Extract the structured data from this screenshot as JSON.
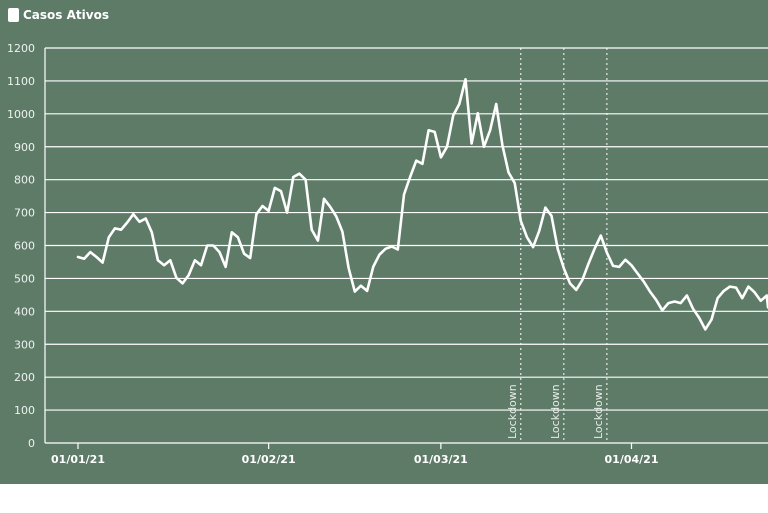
{
  "legend": {
    "label": "Casos Ativos",
    "color": "#ffffff"
  },
  "colors": {
    "background": "#5e7b68",
    "line": "#ffffff",
    "grid": "#ffffff"
  },
  "chart_data": {
    "type": "line",
    "title": "",
    "xlabel": "",
    "ylabel": "",
    "ylim": [
      0,
      1200
    ],
    "yticks": [
      0,
      100,
      200,
      300,
      400,
      500,
      600,
      700,
      800,
      900,
      1000,
      1100,
      1200
    ],
    "grid": true,
    "legend_position": "top-left",
    "xlim": [
      "2021-01-01",
      "2021-04-30"
    ],
    "xticks": [
      {
        "date": "2021-01-01",
        "label": "01/01/21"
      },
      {
        "date": "2021-02-01",
        "label": "01/02/21"
      },
      {
        "date": "2021-03-01",
        "label": "01/03/21"
      },
      {
        "date": "2021-04-01",
        "label": "01/04/21"
      }
    ],
    "annotations": [
      {
        "date": "2021-03-14",
        "label": "Lockdown"
      },
      {
        "date": "2021-03-21",
        "label": "Lockdown"
      },
      {
        "date": "2021-03-28",
        "label": "Lockdown"
      }
    ],
    "series": [
      {
        "name": "Casos Ativos",
        "points": [
          [
            "2021-01-01",
            565
          ],
          [
            "2021-01-02",
            560
          ],
          [
            "2021-01-03",
            580
          ],
          [
            "2021-01-04",
            565
          ],
          [
            "2021-01-05",
            548
          ],
          [
            "2021-01-06",
            625
          ],
          [
            "2021-01-07",
            652
          ],
          [
            "2021-01-08",
            648
          ],
          [
            "2021-01-09",
            670
          ],
          [
            "2021-01-10",
            695
          ],
          [
            "2021-01-11",
            672
          ],
          [
            "2021-01-12",
            682
          ],
          [
            "2021-01-13",
            640
          ],
          [
            "2021-01-14",
            555
          ],
          [
            "2021-01-15",
            540
          ],
          [
            "2021-01-16",
            555
          ],
          [
            "2021-01-17",
            502
          ],
          [
            "2021-01-18",
            485
          ],
          [
            "2021-01-19",
            510
          ],
          [
            "2021-01-20",
            555
          ],
          [
            "2021-01-21",
            540
          ],
          [
            "2021-01-22",
            600
          ],
          [
            "2021-01-23",
            600
          ],
          [
            "2021-01-24",
            580
          ],
          [
            "2021-01-25",
            535
          ],
          [
            "2021-01-26",
            640
          ],
          [
            "2021-01-27",
            625
          ],
          [
            "2021-01-28",
            575
          ],
          [
            "2021-01-29",
            562
          ],
          [
            "2021-01-30",
            695
          ],
          [
            "2021-01-31",
            720
          ],
          [
            "2021-02-01",
            705
          ],
          [
            "2021-02-02",
            775
          ],
          [
            "2021-02-03",
            765
          ],
          [
            "2021-02-04",
            700
          ],
          [
            "2021-02-05",
            808
          ],
          [
            "2021-02-06",
            818
          ],
          [
            "2021-02-07",
            800
          ],
          [
            "2021-02-08",
            648
          ],
          [
            "2021-02-09",
            615
          ],
          [
            "2021-02-10",
            742
          ],
          [
            "2021-02-11",
            718
          ],
          [
            "2021-02-12",
            688
          ],
          [
            "2021-02-13",
            642
          ],
          [
            "2021-02-14",
            532
          ],
          [
            "2021-02-15",
            460
          ],
          [
            "2021-02-16",
            478
          ],
          [
            "2021-02-17",
            462
          ],
          [
            "2021-02-18",
            535
          ],
          [
            "2021-02-19",
            572
          ],
          [
            "2021-02-20",
            590
          ],
          [
            "2021-02-21",
            597
          ],
          [
            "2021-02-22",
            588
          ],
          [
            "2021-02-23",
            755
          ],
          [
            "2021-02-24",
            808
          ],
          [
            "2021-02-25",
            858
          ],
          [
            "2021-02-26",
            848
          ],
          [
            "2021-02-27",
            950
          ],
          [
            "2021-02-28",
            945
          ],
          [
            "2021-03-01",
            868
          ],
          [
            "2021-03-02",
            900
          ],
          [
            "2021-03-03",
            995
          ],
          [
            "2021-03-04",
            1030
          ],
          [
            "2021-03-05",
            1105
          ],
          [
            "2021-03-06",
            910
          ],
          [
            "2021-03-07",
            1002
          ],
          [
            "2021-03-08",
            900
          ],
          [
            "2021-03-09",
            950
          ],
          [
            "2021-03-10",
            1030
          ],
          [
            "2021-03-11",
            905
          ],
          [
            "2021-03-12",
            822
          ],
          [
            "2021-03-13",
            790
          ],
          [
            "2021-03-14",
            675
          ],
          [
            "2021-03-15",
            625
          ],
          [
            "2021-03-16",
            595
          ],
          [
            "2021-03-17",
            645
          ],
          [
            "2021-03-18",
            715
          ],
          [
            "2021-03-19",
            690
          ],
          [
            "2021-03-20",
            590
          ],
          [
            "2021-03-21",
            530
          ],
          [
            "2021-03-22",
            485
          ],
          [
            "2021-03-23",
            465
          ],
          [
            "2021-03-24",
            495
          ],
          [
            "2021-03-25",
            545
          ],
          [
            "2021-03-26",
            590
          ],
          [
            "2021-03-27",
            630
          ],
          [
            "2021-03-28",
            578
          ],
          [
            "2021-03-29",
            538
          ],
          [
            "2021-03-30",
            535
          ],
          [
            "2021-03-31",
            557
          ],
          [
            "2021-04-01",
            540
          ],
          [
            "2021-04-02",
            515
          ],
          [
            "2021-04-03",
            490
          ],
          [
            "2021-04-04",
            460
          ],
          [
            "2021-04-05",
            435
          ],
          [
            "2021-04-06",
            403
          ],
          [
            "2021-04-07",
            425
          ],
          [
            "2021-04-08",
            430
          ],
          [
            "2021-04-09",
            425
          ],
          [
            "2021-04-10",
            448
          ],
          [
            "2021-04-11",
            408
          ],
          [
            "2021-04-12",
            380
          ],
          [
            "2021-04-13",
            345
          ],
          [
            "2021-04-14",
            375
          ],
          [
            "2021-04-15",
            440
          ],
          [
            "2021-04-16",
            462
          ],
          [
            "2021-04-17",
            475
          ],
          [
            "2021-04-18",
            472
          ],
          [
            "2021-04-19",
            440
          ],
          [
            "2021-04-20",
            475
          ],
          [
            "2021-04-21",
            458
          ],
          [
            "2021-04-22",
            432
          ],
          [
            "2021-04-23",
            448
          ],
          [
            "2021-04-24",
            412
          ]
        ]
      }
    ]
  }
}
